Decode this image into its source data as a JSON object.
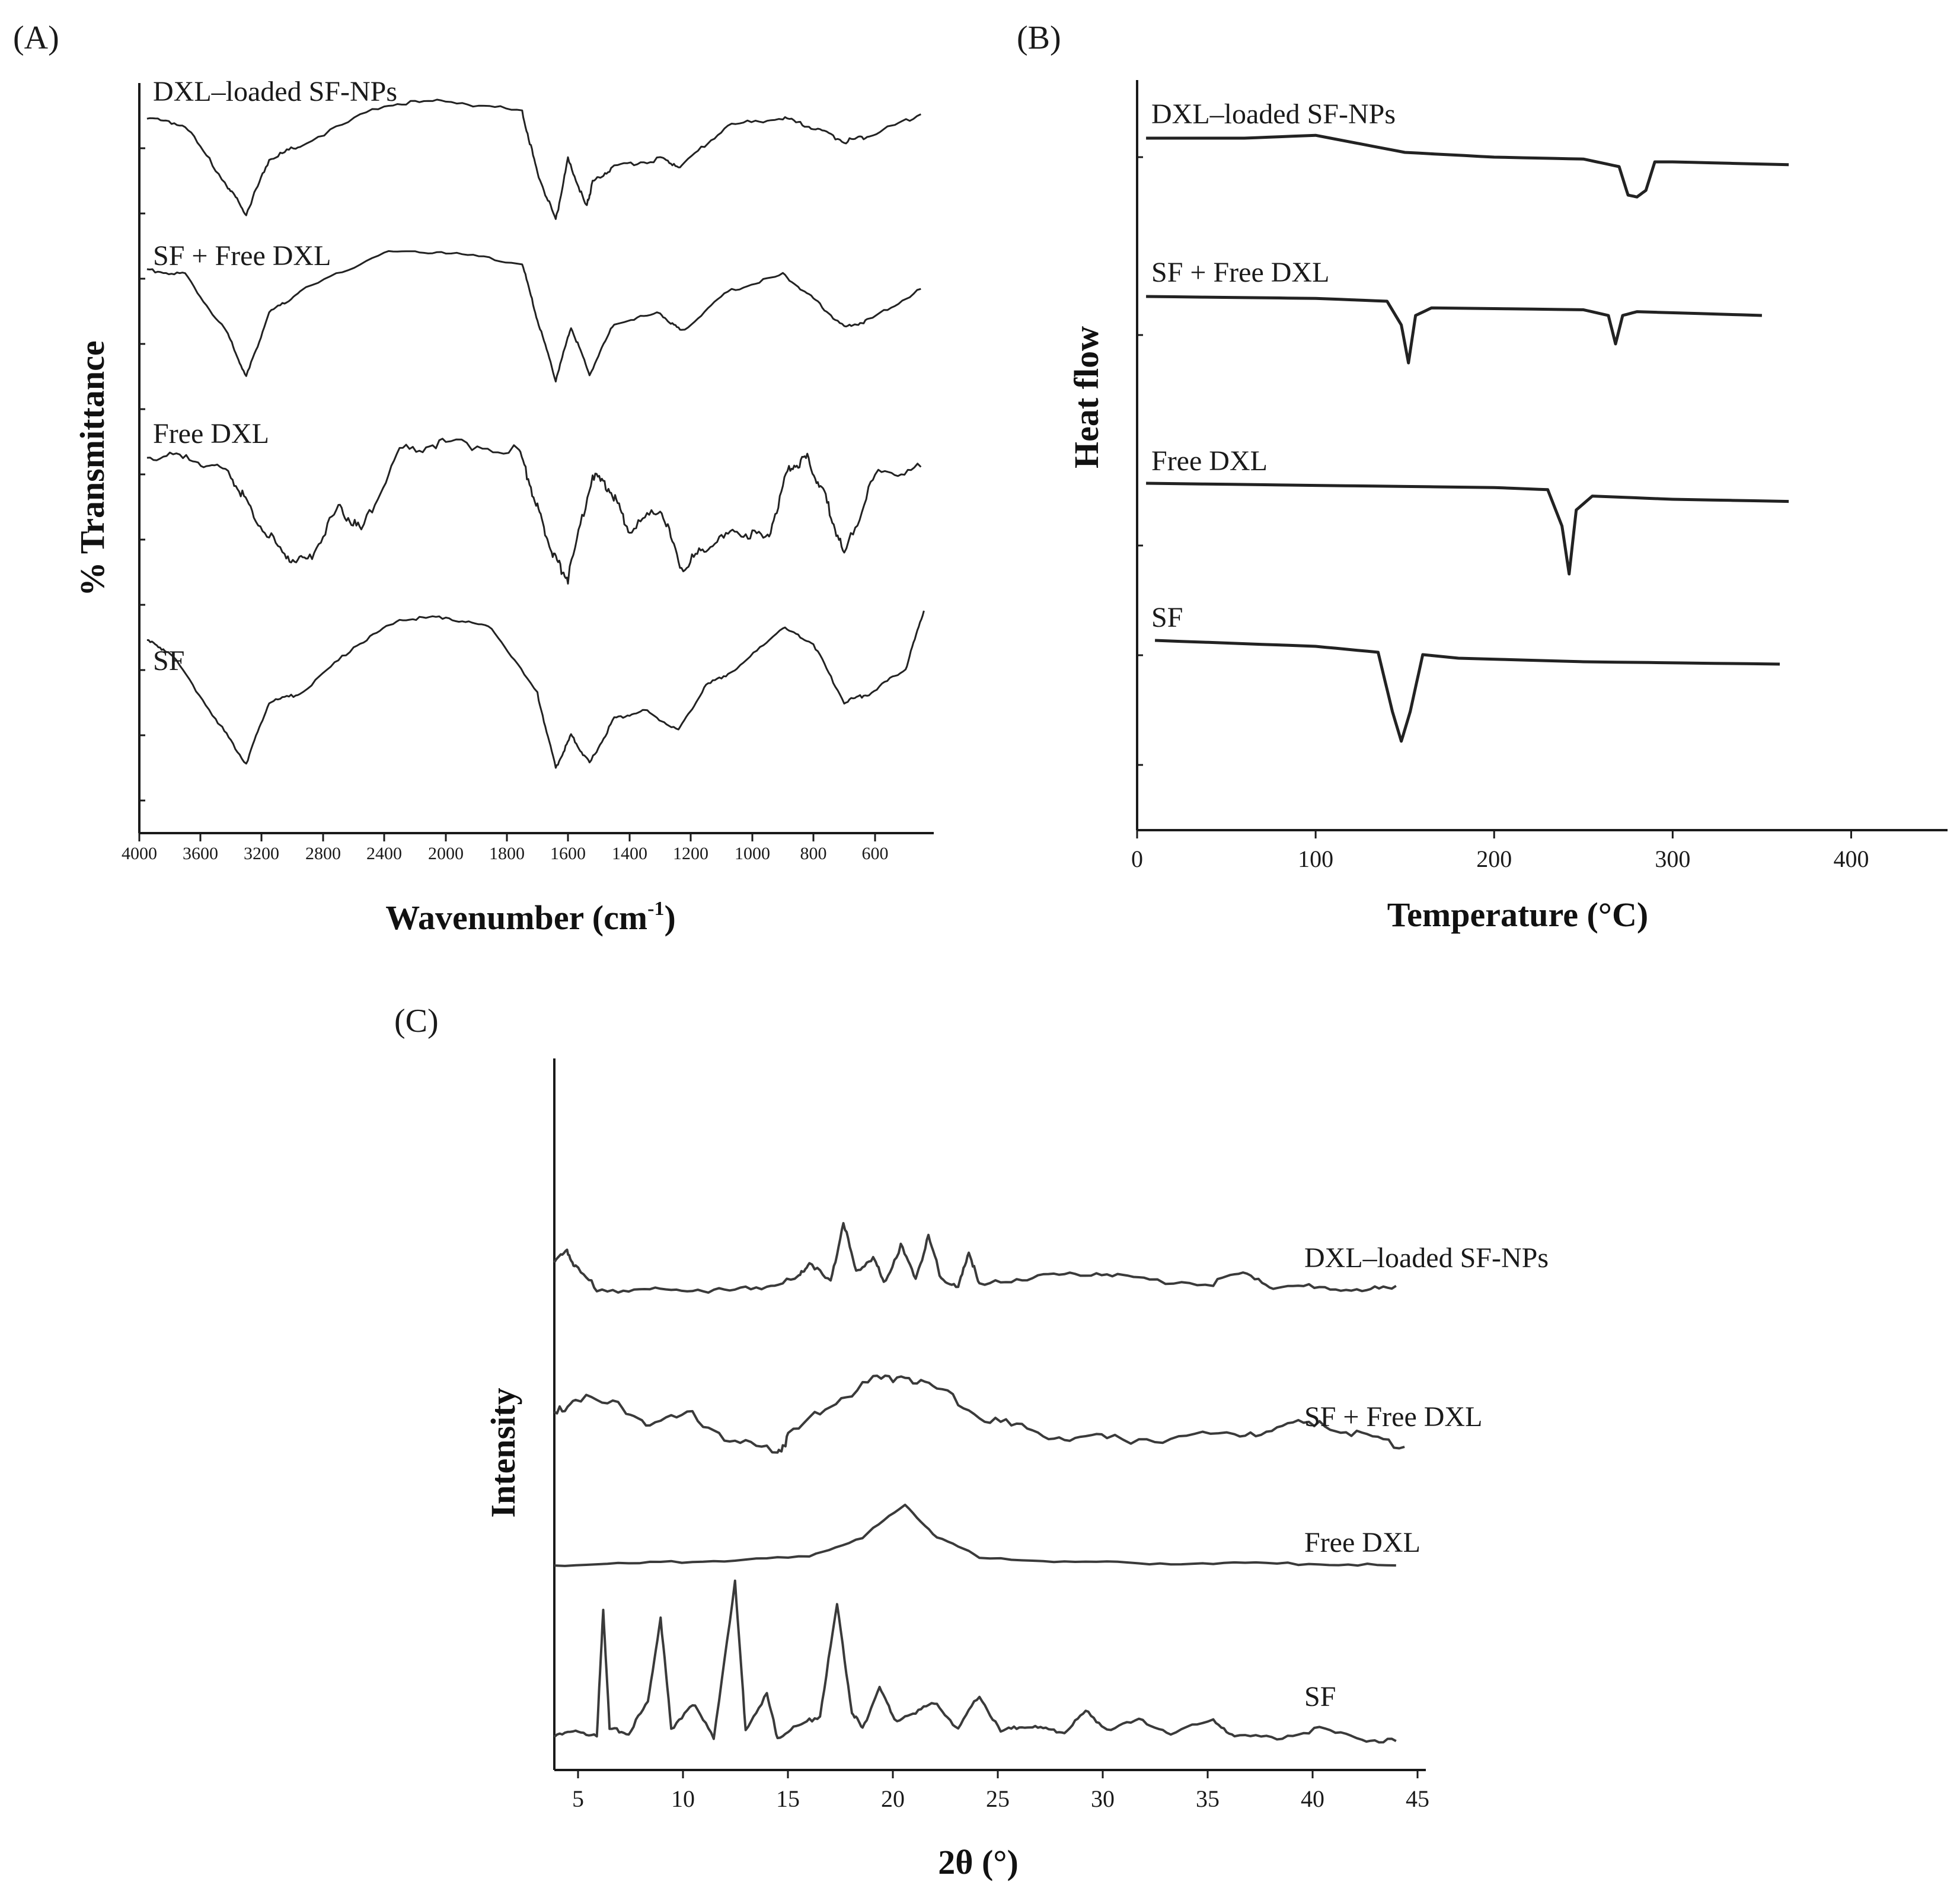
{
  "chart_data": [
    {
      "panel": "(A)",
      "type": "line",
      "xlabel_main": "Wavenumber (cm",
      "xlabel_sup": "-1",
      "xlabel_close": ")",
      "ylabel": "% Transmittance",
      "xlim": [
        4000,
        400
      ],
      "x_ticks": [
        "4000",
        "3600",
        "3200",
        "2800",
        "2400",
        "2000",
        "1800",
        "1600",
        "1400",
        "1200",
        "1000",
        "800",
        "600"
      ],
      "series": [
        {
          "name": "DXL–loaded SF-NPs",
          "x": [
            3950,
            3700,
            3420,
            3300,
            3150,
            2950,
            2400,
            2000,
            1750,
            1700,
            1640,
            1600,
            1540,
            1520,
            1450,
            1300,
            1230,
            1080,
            900,
            800,
            700,
            620,
            450
          ],
          "y": [
            0.85,
            0.8,
            0.35,
            0.15,
            0.55,
            0.65,
            0.95,
            0.98,
            0.9,
            0.45,
            0.1,
            0.55,
            0.2,
            0.38,
            0.5,
            0.55,
            0.5,
            0.8,
            0.85,
            0.78,
            0.68,
            0.72,
            0.88
          ]
        },
        {
          "name": "SF + Free DXL",
          "x": [
            3950,
            3700,
            3420,
            3300,
            3150,
            2950,
            2400,
            2000,
            1750,
            1700,
            1640,
            1590,
            1530,
            1450,
            1300,
            1230,
            1080,
            900,
            800,
            700,
            620,
            450
          ],
          "y": [
            0.85,
            0.82,
            0.4,
            0.1,
            0.55,
            0.7,
            0.98,
            0.98,
            0.9,
            0.5,
            0.08,
            0.45,
            0.12,
            0.48,
            0.55,
            0.42,
            0.7,
            0.82,
            0.65,
            0.45,
            0.5,
            0.72
          ]
        },
        {
          "name": "Free DXL",
          "x": [
            3950,
            3650,
            3400,
            3250,
            3050,
            2900,
            2700,
            2550,
            2300,
            2000,
            1760,
            1700,
            1650,
            1600,
            1520,
            1460,
            1400,
            1300,
            1230,
            1150,
            1050,
            950,
            880,
            820,
            760,
            700,
            600,
            450
          ],
          "y": [
            0.82,
            0.8,
            0.7,
            0.45,
            0.2,
            0.15,
            0.5,
            0.35,
            0.85,
            0.9,
            0.85,
            0.5,
            0.2,
            0.05,
            0.7,
            0.6,
            0.35,
            0.5,
            0.12,
            0.25,
            0.35,
            0.3,
            0.75,
            0.8,
            0.55,
            0.2,
            0.7,
            0.75
          ]
        },
        {
          "name": "SF",
          "x": [
            3950,
            3800,
            3500,
            3300,
            3150,
            2950,
            2600,
            2300,
            2000,
            1850,
            1700,
            1640,
            1590,
            1530,
            1450,
            1350,
            1240,
            1150,
            1050,
            900,
            800,
            700,
            620,
            500,
            440
          ],
          "y": [
            0.82,
            0.75,
            0.35,
            0.08,
            0.45,
            0.5,
            0.78,
            0.95,
            0.96,
            0.9,
            0.5,
            0.05,
            0.25,
            0.08,
            0.35,
            0.4,
            0.28,
            0.55,
            0.65,
            0.9,
            0.8,
            0.45,
            0.5,
            0.65,
            1.0
          ]
        }
      ]
    },
    {
      "panel": "(B)",
      "type": "line",
      "xlabel": "Temperature (°C)",
      "ylabel": "Heat flow",
      "xlim": [
        0,
        450
      ],
      "x_ticks": [
        "0",
        "100",
        "200",
        "300",
        "400"
      ],
      "series": [
        {
          "name": "DXL–loaded SF-NPs",
          "x": [
            5,
            60,
            100,
            150,
            200,
            250,
            270,
            275,
            280,
            285,
            290,
            300,
            365
          ],
          "y": [
            0,
            0,
            0.03,
            -0.15,
            -0.2,
            -0.22,
            -0.3,
            -0.6,
            -0.62,
            -0.55,
            -0.25,
            -0.25,
            -0.28
          ]
        },
        {
          "name": "SF + Free DXL",
          "x": [
            5,
            100,
            140,
            148,
            152,
            156,
            165,
            250,
            264,
            268,
            272,
            280,
            350
          ],
          "y": [
            0,
            -0.02,
            -0.05,
            -0.3,
            -0.7,
            -0.2,
            -0.12,
            -0.14,
            -0.2,
            -0.5,
            -0.2,
            -0.16,
            -0.2
          ]
        },
        {
          "name": "Free DXL",
          "x": [
            5,
            100,
            200,
            230,
            238,
            242,
            246,
            255,
            300,
            365
          ],
          "y": [
            0,
            -0.02,
            -0.04,
            -0.06,
            -0.4,
            -0.85,
            -0.25,
            -0.12,
            -0.15,
            -0.17
          ]
        },
        {
          "name": "SF",
          "x": [
            10,
            100,
            135,
            143,
            148,
            153,
            160,
            180,
            250,
            360
          ],
          "y": [
            0,
            -0.05,
            -0.1,
            -0.6,
            -0.85,
            -0.6,
            -0.12,
            -0.15,
            -0.18,
            -0.2
          ]
        }
      ]
    },
    {
      "panel": "(C)",
      "type": "line",
      "xlabel": "2θ (°)",
      "ylabel": "Intensity",
      "xlim": [
        4,
        45
      ],
      "x_ticks": [
        "5",
        "10",
        "15",
        "20",
        "25",
        "30",
        "35",
        "40",
        "45"
      ],
      "series": [
        {
          "name": "DXL–loaded SF-NPs",
          "x": [
            4,
            4.6,
            5,
            6,
            8,
            10,
            12,
            14,
            15.5,
            16,
            17,
            17.6,
            18.2,
            19,
            19.5,
            20.3,
            21,
            21.6,
            22.2,
            23,
            23.5,
            24,
            26,
            28,
            30,
            32,
            35,
            36.6,
            38,
            40,
            42,
            43.6
          ],
          "y": [
            0.8,
            1.0,
            0.7,
            0.3,
            0.25,
            0.3,
            0.25,
            0.35,
            0.5,
            0.8,
            0.4,
            1.55,
            0.6,
            0.9,
            0.4,
            1.1,
            0.5,
            1.25,
            0.5,
            0.3,
            1.0,
            0.35,
            0.5,
            0.55,
            0.6,
            0.45,
            0.4,
            0.6,
            0.3,
            0.35,
            0.25,
            0.35
          ]
        },
        {
          "name": "SF + Free DXL",
          "x": [
            4,
            5,
            7,
            8.5,
            10.5,
            12.5,
            14.5,
            15,
            17,
            19,
            20.5,
            22,
            24,
            26,
            28,
            30,
            33,
            36,
            38,
            40,
            42,
            44
          ],
          "y": [
            0.55,
            0.75,
            0.65,
            0.45,
            0.55,
            0.25,
            0.15,
            0.3,
            0.7,
            0.95,
            1.0,
            0.85,
            0.55,
            0.4,
            0.3,
            0.28,
            0.3,
            0.35,
            0.4,
            0.5,
            0.3,
            0.2
          ]
        },
        {
          "name": "Free DXL",
          "x": [
            4,
            8,
            12,
            16,
            18.5,
            20.5,
            22,
            24,
            28,
            32,
            36,
            40,
            43.6
          ],
          "y": [
            0.0,
            0.03,
            0.07,
            0.12,
            0.4,
            0.85,
            0.4,
            0.12,
            0.05,
            0.03,
            0.03,
            0.02,
            0.0
          ]
        },
        {
          "name": "SF",
          "x": [
            4,
            5,
            6,
            6.3,
            6.6,
            7.5,
            8.4,
            9,
            9.5,
            10.5,
            11.5,
            12.5,
            13,
            14,
            14.5,
            15.5,
            16.5,
            17.3,
            18,
            18.5,
            19.3,
            20,
            21,
            22,
            23,
            24,
            25,
            26,
            27,
            28,
            29,
            30,
            31.5,
            33,
            35,
            36,
            38,
            40,
            42,
            43.6
          ],
          "y": [
            0.05,
            0.1,
            0.05,
            0.8,
            0.1,
            0.08,
            0.25,
            0.75,
            0.1,
            0.25,
            0.05,
            0.95,
            0.1,
            0.3,
            0.05,
            0.12,
            0.18,
            0.82,
            0.2,
            0.1,
            0.35,
            0.15,
            0.2,
            0.25,
            0.1,
            0.3,
            0.08,
            0.12,
            0.1,
            0.08,
            0.2,
            0.1,
            0.15,
            0.08,
            0.15,
            0.06,
            0.05,
            0.1,
            0.04,
            0.03
          ]
        }
      ]
    }
  ]
}
